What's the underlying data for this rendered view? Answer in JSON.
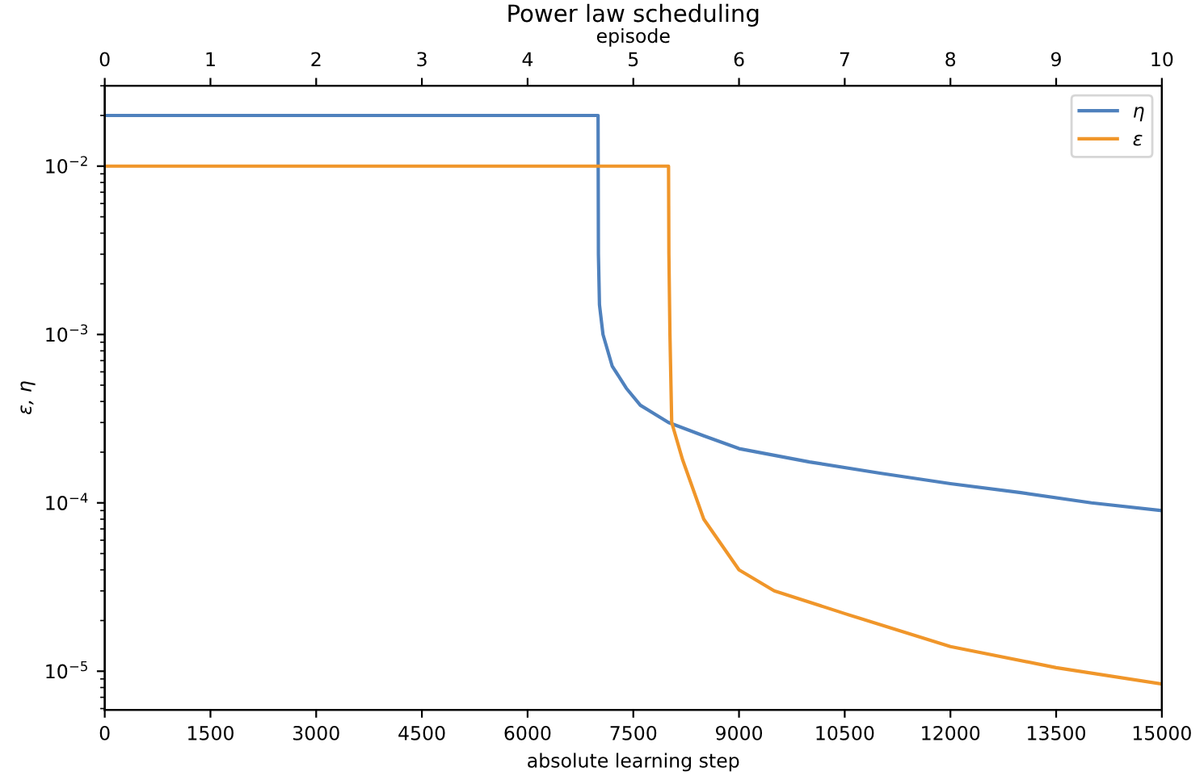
{
  "chart_data": {
    "type": "line",
    "title": "Power law scheduling",
    "xlabel": "absolute learning step",
    "ylabel": "ε, η",
    "x2label": "episode",
    "log": "y",
    "xlim": [
      0,
      15000
    ],
    "xticks": [
      0,
      1500,
      3000,
      4500,
      6000,
      7500,
      9000,
      10500,
      12000,
      13500,
      15000
    ],
    "x2lim": [
      0,
      10
    ],
    "x2ticks": [
      0,
      1,
      2,
      3,
      4,
      5,
      6,
      7,
      8,
      9,
      10
    ],
    "ylim": [
      5.9e-06,
      0.03
    ],
    "yticks": [
      {
        "value": 1e-05,
        "label": "10$^{−5}$"
      },
      {
        "value": 0.0001,
        "label": "10$^{−4}$"
      },
      {
        "value": 0.001,
        "label": "10$^{−3}$"
      },
      {
        "value": 0.01,
        "label": "10$^{−2}$"
      }
    ],
    "legend": "top right",
    "grid": false,
    "series": [
      {
        "name": "η",
        "color": "#4f81bd",
        "x": [
          0,
          7000,
          7005,
          7020,
          7070,
          7200,
          7400,
          7600,
          8000,
          8500,
          9000,
          10000,
          11000,
          12000,
          13000,
          14000,
          15000
        ],
        "values": [
          0.02,
          0.02,
          0.003,
          0.0015,
          0.001,
          0.00065,
          0.00048,
          0.00038,
          0.0003,
          0.00025,
          0.00021,
          0.000175,
          0.00015,
          0.00013,
          0.000115,
          0.0001,
          9e-05
        ]
      },
      {
        "name": "ε",
        "color": "#f0962a",
        "x": [
          0,
          8000,
          8005,
          8020,
          8045,
          8200,
          8500,
          9000,
          9500,
          10500,
          12000,
          13500,
          15000
        ],
        "values": [
          0.01,
          0.01,
          0.003,
          0.001,
          0.0003,
          0.00018,
          8e-05,
          4e-05,
          3e-05,
          2.2e-05,
          1.4e-05,
          1.05e-05,
          8.4e-06
        ]
      }
    ]
  }
}
